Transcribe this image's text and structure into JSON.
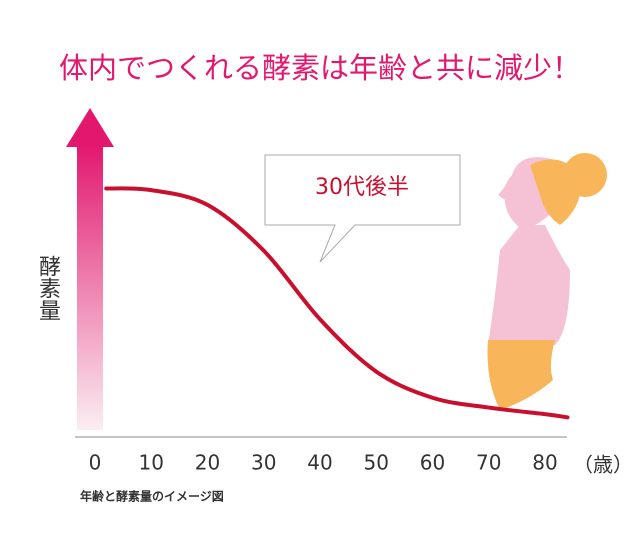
{
  "chart_data": {
    "type": "line",
    "title": "体内でつくれる酵素は年齢と共に減少！",
    "ylabel": "酵素量",
    "xunit": "（歳）",
    "caption": "年齢と酵素量のイメージ図",
    "annotation": "30代後半",
    "x": [
      2,
      10,
      20,
      30,
      40,
      50,
      60,
      70,
      80,
      84
    ],
    "series": [
      {
        "color": "#c8102e",
        "values": [
          76,
          75.5,
          71,
          57,
          36,
          20,
          12,
          9,
          7,
          6
        ]
      }
    ],
    "xlim": [
      0,
      80
    ],
    "xticks": [
      0,
      10,
      20,
      30,
      40,
      50,
      60,
      70,
      80
    ],
    "ylim": [
      0,
      100
    ]
  }
}
